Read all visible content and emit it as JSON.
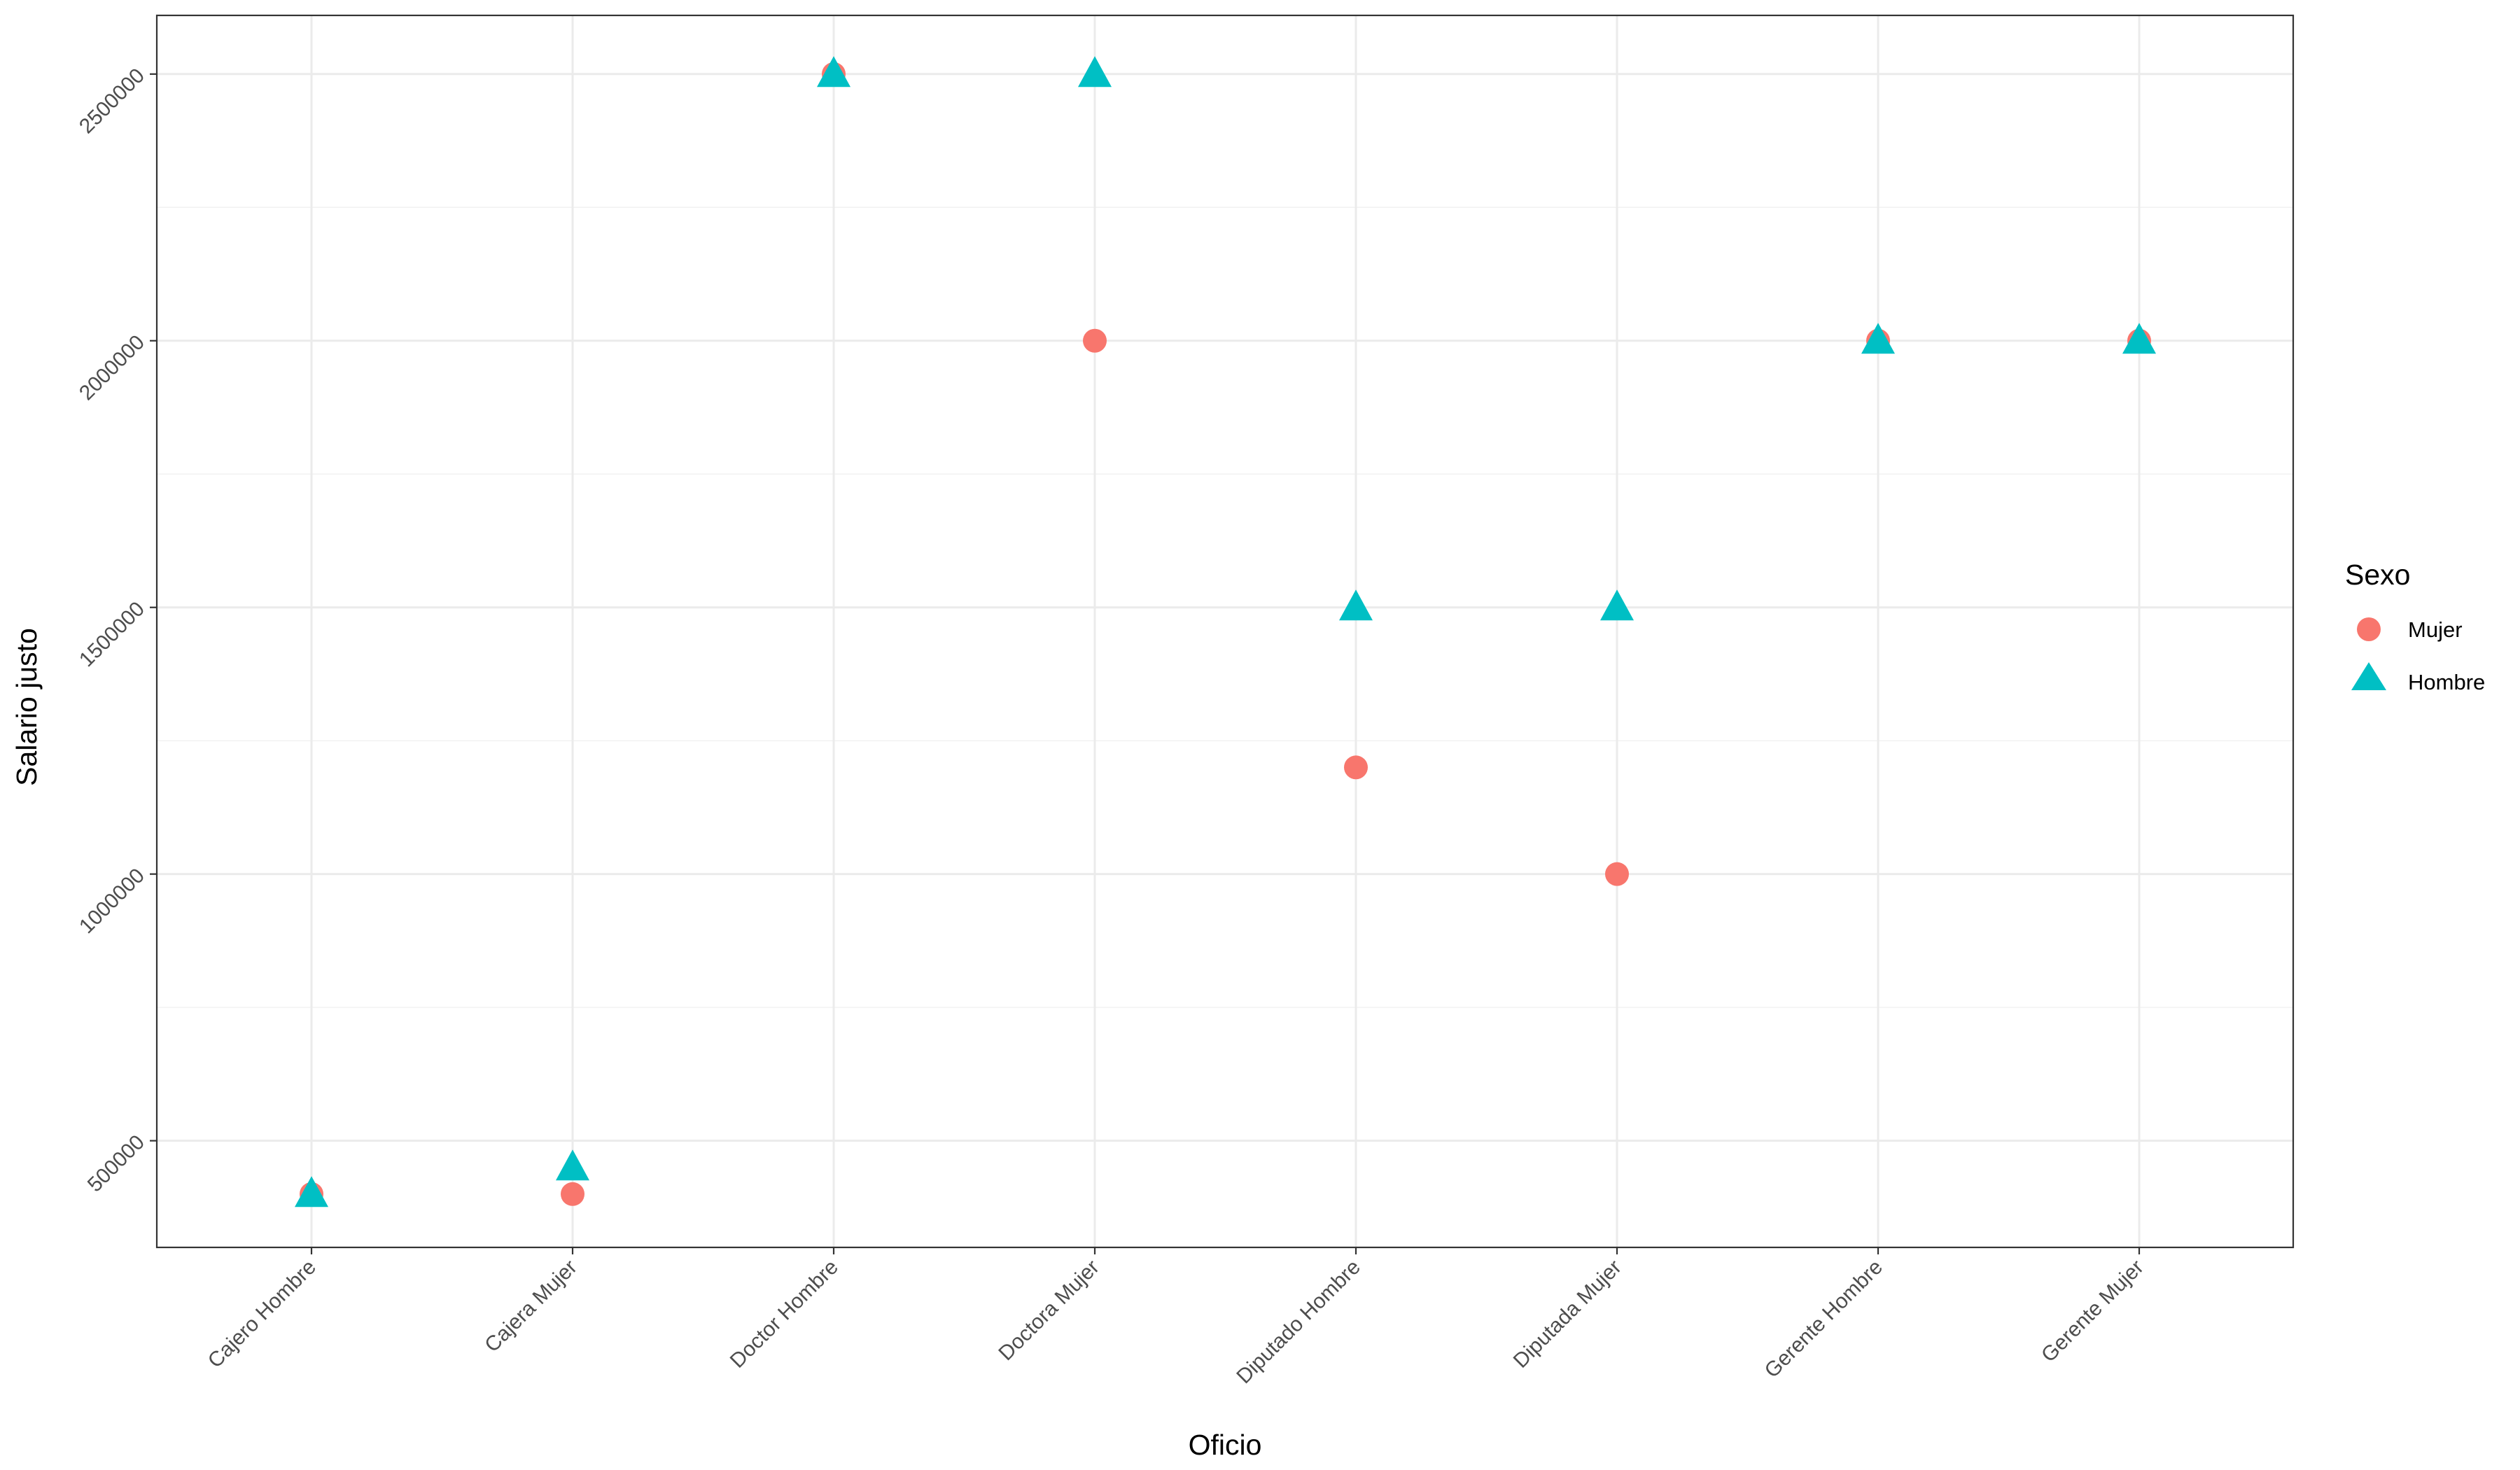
{
  "chart_data": {
    "type": "scatter",
    "title": "",
    "xlabel": "Oficio",
    "ylabel": "Salario justo",
    "categories": [
      "Cajero Hombre",
      "Cajera Mujer",
      "Doctor Hombre",
      "Doctora Mujer",
      "Diputado Hombre",
      "Diputada Mujer",
      "Gerente Hombre",
      "Gerente Mujer"
    ],
    "ylim": [
      300000,
      2610000
    ],
    "yticks": [
      500000,
      1000000,
      1500000,
      2000000,
      2500000
    ],
    "ytick_labels": [
      "500000",
      "1000000",
      "1500000",
      "2000000",
      "2500000"
    ],
    "grid": true,
    "legend": {
      "title": "Sexo",
      "position": "right"
    },
    "series": [
      {
        "name": "Mujer",
        "marker": "circle",
        "color": "#F8766D",
        "values": [
          400000,
          400000,
          2500000,
          2000000,
          1200000,
          1000000,
          2000000,
          2000000
        ]
      },
      {
        "name": "Hombre",
        "marker": "triangle",
        "color": "#00BFC4",
        "values": [
          400000,
          450000,
          2500000,
          2500000,
          1500000,
          1500000,
          2000000,
          2000000
        ]
      }
    ]
  }
}
